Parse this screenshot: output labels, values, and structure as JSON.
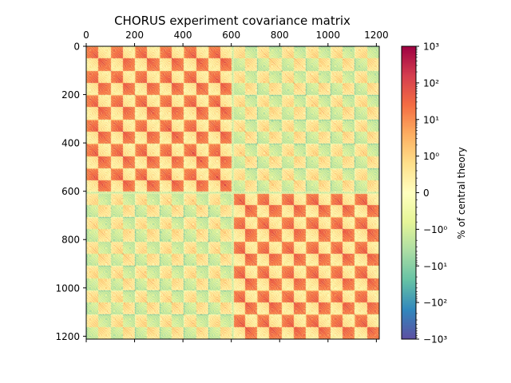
{
  "chart_data": {
    "type": "heatmap",
    "title": "CHORUS experiment covariance matrix",
    "xlabel": "",
    "ylabel": "",
    "matrix_size": 1212,
    "block_boundary": 606,
    "sub_block_period": 101,
    "x_ticks": [
      0,
      200,
      400,
      600,
      800,
      1000,
      1200
    ],
    "y_ticks": [
      0,
      200,
      400,
      600,
      800,
      1000,
      1200
    ],
    "x_tick_labels": [
      "0",
      "200",
      "400",
      "600",
      "800",
      "1000",
      "1200"
    ],
    "y_tick_labels": [
      "0",
      "200",
      "400",
      "600",
      "800",
      "1000",
      "1200"
    ],
    "xlim": [
      0,
      1212
    ],
    "ylim": [
      1212,
      0
    ],
    "x_axis_position": "top",
    "colormap": "Spectral_r",
    "color_scale": "symlog",
    "colorbar": {
      "label": "% of central theory",
      "ticks": [
        {
          "value": 1000,
          "label": "10³"
        },
        {
          "value": 100,
          "label": "10²"
        },
        {
          "value": 10,
          "label": "10¹"
        },
        {
          "value": 1,
          "label": "10⁰"
        },
        {
          "value": 0,
          "label": "0"
        },
        {
          "value": -1,
          "label": "−10⁰"
        },
        {
          "value": -10,
          "label": "−10¹"
        },
        {
          "value": -100,
          "label": "−10²"
        },
        {
          "value": -1000,
          "label": "−10³"
        }
      ],
      "range": [
        -1000,
        1000
      ],
      "linthresh": 1
    }
  },
  "colors": {
    "cmap_stops": [
      "#5e4fa2",
      "#3288bd",
      "#66c2a5",
      "#abdda4",
      "#e6f598",
      "#ffffbf",
      "#fee08b",
      "#fdae61",
      "#f46d43",
      "#d53e4f",
      "#9e0142"
    ]
  }
}
